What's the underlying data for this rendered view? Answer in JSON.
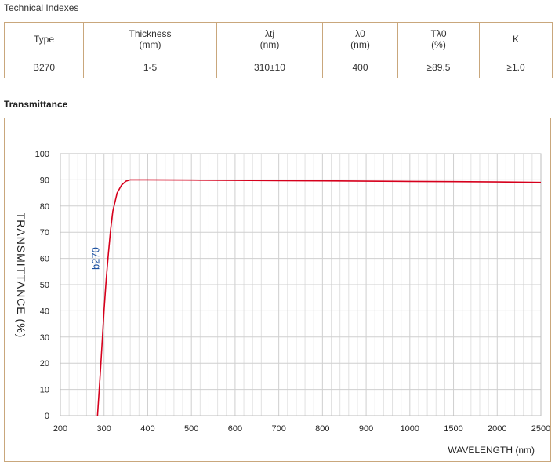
{
  "sections": {
    "technical_title": "Technical Indexes",
    "transmittance_title": "Transmittance"
  },
  "table": {
    "headers": [
      {
        "line1": "Type",
        "line2": ""
      },
      {
        "line1": "Thickness",
        "line2": "(mm)"
      },
      {
        "line1": "λtj",
        "line2": "(nm)"
      },
      {
        "line1": "λ0",
        "line2": "(nm)"
      },
      {
        "line1": "Tλ0",
        "line2": "(%)"
      },
      {
        "line1": "K",
        "line2": ""
      }
    ],
    "row": [
      "B270",
      "1-5",
      "310±10",
      "400",
      "≥89.5",
      "≥1.0"
    ]
  },
  "chart_data": {
    "type": "line",
    "xlabel": "WAVELENGTH (nm)",
    "ylabel": "TRANSMITTANCE (%)",
    "x_ticks": [
      200,
      300,
      400,
      500,
      600,
      700,
      800,
      900,
      1000,
      1500,
      2000,
      2500
    ],
    "y_ticks": [
      0,
      10,
      20,
      30,
      40,
      50,
      60,
      70,
      80,
      90,
      100
    ],
    "ylim": [
      0,
      100
    ],
    "grid": true,
    "series_color": "#d6001c",
    "series": [
      {
        "name": "b270",
        "label_color": "#1a4fa0",
        "x": [
          285,
          292,
          300,
          305,
          310,
          315,
          320,
          330,
          340,
          350,
          360,
          370,
          400,
          500,
          600,
          700,
          800,
          900,
          1000,
          1500,
          2000,
          2500
        ],
        "y": [
          0,
          18,
          40,
          52,
          62,
          71,
          78,
          85,
          88,
          89.5,
          90,
          90,
          90,
          89.9,
          89.8,
          89.7,
          89.6,
          89.5,
          89.4,
          89.3,
          89.2,
          89.0
        ]
      }
    ]
  }
}
